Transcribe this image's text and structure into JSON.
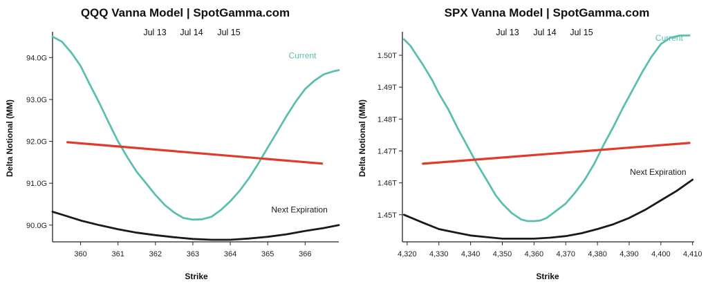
{
  "chart_data": [
    {
      "type": "line",
      "title": "QQQ Vanna Model | SpotGamma.com",
      "dates": [
        "Jul 13",
        "Jul 14",
        "Jul 15"
      ],
      "active_date_index": -1,
      "xlabel": "Strike",
      "ylabel": "Delta Notional (MM)",
      "xlim": [
        359.25,
        366.9
      ],
      "ylim": [
        89.6,
        94.55
      ],
      "xticks": [
        360,
        361,
        362,
        363,
        364,
        365,
        366
      ],
      "xtick_labels": [
        "360",
        "361",
        "362",
        "363",
        "364",
        "365",
        "366"
      ],
      "yticks": [
        90,
        91,
        92,
        93,
        94
      ],
      "ytick_labels": [
        "90.0G",
        "91.0G",
        "92.0G",
        "93.0G",
        "94.0G"
      ],
      "colors": {
        "current": "#5bbfb0",
        "next": "#1a1a1a",
        "spot": "#e03a2a"
      },
      "series": [
        {
          "name": "Current",
          "label_pos": [
            366.3,
            93.98
          ],
          "x": [
            359.25,
            359.5,
            359.75,
            360.0,
            360.25,
            360.5,
            360.75,
            361.0,
            361.25,
            361.5,
            361.75,
            362.0,
            362.25,
            362.5,
            362.75,
            363.0,
            363.25,
            363.5,
            363.75,
            364.0,
            364.25,
            364.5,
            364.75,
            365.0,
            365.25,
            365.5,
            365.75,
            366.0,
            366.25,
            366.5,
            366.75,
            366.9
          ],
          "values": [
            94.5,
            94.38,
            94.12,
            93.8,
            93.35,
            92.92,
            92.45,
            92.0,
            91.62,
            91.27,
            91.0,
            90.72,
            90.48,
            90.3,
            90.17,
            90.13,
            90.14,
            90.2,
            90.36,
            90.57,
            90.82,
            91.12,
            91.47,
            91.85,
            92.22,
            92.6,
            92.95,
            93.25,
            93.45,
            93.6,
            93.67,
            93.7
          ]
        },
        {
          "name": "Next Expiration",
          "label_pos": [
            366.6,
            90.3
          ],
          "x": [
            359.25,
            359.5,
            359.75,
            360.0,
            360.5,
            361.0,
            361.5,
            362.0,
            362.5,
            363.0,
            363.5,
            364.0,
            364.5,
            365.0,
            365.5,
            366.0,
            366.5,
            366.9
          ],
          "values": [
            90.32,
            90.25,
            90.18,
            90.11,
            90.0,
            89.9,
            89.82,
            89.76,
            89.71,
            89.67,
            89.65,
            89.65,
            89.68,
            89.72,
            89.78,
            89.86,
            89.93,
            90.0
          ]
        },
        {
          "name": "",
          "x": [
            359.65,
            366.45
          ],
          "values": [
            91.98,
            91.47
          ]
        }
      ]
    },
    {
      "type": "line",
      "title": "SPX Vanna Model | SpotGamma.com",
      "dates": [
        "Jul 13",
        "Jul 14",
        "Jul 15"
      ],
      "active_date_index": 2,
      "xlabel": "Strike",
      "ylabel": "Delta Notional (MM)",
      "xlim": [
        4318.5,
        4410.5
      ],
      "ylim": [
        1.4415,
        1.5065
      ],
      "xticks": [
        4320,
        4330,
        4340,
        4350,
        4360,
        4370,
        4380,
        4390,
        4400,
        4410
      ],
      "xtick_labels": [
        "4,320",
        "4,330",
        "4,340",
        "4,350",
        "4,360",
        "4,370",
        "4,380",
        "4,390",
        "4,400",
        "4,410"
      ],
      "yticks": [
        1.45,
        1.46,
        1.47,
        1.48,
        1.49,
        1.5
      ],
      "ytick_labels": [
        "1.45T",
        "1.46T",
        "1.47T",
        "1.48T",
        "1.49T",
        "1.50T"
      ],
      "colors": {
        "current": "#5bbfb0",
        "next": "#1a1a1a",
        "spot": "#e03a2a"
      },
      "series": [
        {
          "name": "Current",
          "label_pos": [
            4407,
            1.5045
          ],
          "x": [
            4319,
            4321,
            4323,
            4325,
            4328,
            4330,
            4333,
            4336,
            4339,
            4342,
            4345,
            4348,
            4350,
            4353,
            4356,
            4358,
            4360,
            4362,
            4364,
            4366,
            4368,
            4370,
            4373,
            4376,
            4379,
            4382,
            4385,
            4388,
            4391,
            4394,
            4397,
            4400,
            4403,
            4406,
            4409
          ],
          "values": [
            1.505,
            1.503,
            1.5,
            1.497,
            1.492,
            1.488,
            1.483,
            1.477,
            1.4715,
            1.466,
            1.461,
            1.456,
            1.4535,
            1.4505,
            1.4485,
            1.448,
            1.448,
            1.4482,
            1.449,
            1.4505,
            1.452,
            1.4535,
            1.457,
            1.461,
            1.466,
            1.472,
            1.4775,
            1.4835,
            1.489,
            1.4945,
            1.4995,
            1.5035,
            1.5055,
            1.5062,
            1.5062
          ]
        },
        {
          "name": "Next Expiration",
          "label_pos": [
            4408,
            1.4625
          ],
          "x": [
            4319,
            4325,
            4330,
            4335,
            4340,
            4345,
            4350,
            4355,
            4360,
            4365,
            4370,
            4375,
            4380,
            4385,
            4390,
            4395,
            4400,
            4405,
            4410
          ],
          "values": [
            1.45,
            1.4475,
            1.4455,
            1.4445,
            1.4435,
            1.443,
            1.4425,
            1.4425,
            1.4425,
            1.4428,
            1.4433,
            1.4442,
            1.4455,
            1.447,
            1.449,
            1.4515,
            1.4545,
            1.4575,
            1.461
          ]
        },
        {
          "name": "",
          "x": [
            4325,
            4409
          ],
          "values": [
            1.466,
            1.4725
          ]
        }
      ]
    }
  ]
}
